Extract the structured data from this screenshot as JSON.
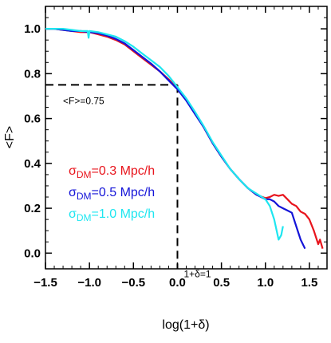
{
  "chart_data": {
    "type": "line",
    "xlabel": "log(1+δ)",
    "ylabel": "<F>",
    "xlim": [
      -1.5,
      1.7
    ],
    "ylim": [
      -0.07,
      1.1
    ],
    "x_ticks": [
      -1.5,
      -1.0,
      -0.5,
      0.0,
      0.5,
      1.0,
      1.5
    ],
    "x_tick_labels": [
      "−1.5",
      "−1.0",
      "−0.5",
      "0.0",
      "0.5",
      "1.0",
      "1.5"
    ],
    "y_ticks": [
      0.0,
      0.2,
      0.4,
      0.6,
      0.8,
      1.0
    ],
    "y_tick_labels": [
      "0.0",
      "0.2",
      "0.4",
      "0.6",
      "0.8",
      "1.0"
    ],
    "grid": false,
    "legend_placement": "center-left",
    "reference_lines": [
      {
        "kind": "horizontal",
        "y": 0.75,
        "x_from": -1.5,
        "x_to": 0.0,
        "style": "dashed",
        "label": "<F>=0.75"
      },
      {
        "kind": "vertical",
        "x": 0.0,
        "y_from": -0.07,
        "y_to": 0.75,
        "style": "dashed",
        "label": "1+δ=1"
      }
    ],
    "series": [
      {
        "name_prefix": "σ",
        "name_sub": "DM",
        "name_suffix": "=0.3 Mpc/h",
        "color": "#e8141c",
        "x": [
          -1.5,
          -1.4,
          -1.3,
          -1.2,
          -1.1,
          -1.0,
          -0.9,
          -0.8,
          -0.7,
          -0.6,
          -0.5,
          -0.4,
          -0.3,
          -0.2,
          -0.1,
          0.0,
          0.1,
          0.2,
          0.3,
          0.4,
          0.5,
          0.6,
          0.7,
          0.8,
          0.9,
          1.0,
          1.05,
          1.1,
          1.15,
          1.2,
          1.25,
          1.3,
          1.35,
          1.4,
          1.45,
          1.5,
          1.55,
          1.6,
          1.62,
          1.65
        ],
        "y": [
          1.0,
          1.0,
          0.995,
          0.99,
          0.985,
          0.985,
          0.975,
          0.965,
          0.95,
          0.93,
          0.9,
          0.87,
          0.84,
          0.81,
          0.775,
          0.735,
          0.685,
          0.625,
          0.56,
          0.49,
          0.43,
          0.375,
          0.33,
          0.29,
          0.26,
          0.245,
          0.25,
          0.26,
          0.255,
          0.26,
          0.24,
          0.22,
          0.21,
          0.185,
          0.175,
          0.15,
          0.1,
          0.04,
          0.06,
          0.02
        ]
      },
      {
        "name_prefix": "σ",
        "name_sub": "DM",
        "name_suffix": "=0.5 Mpc/h",
        "color": "#1414d8",
        "x": [
          -1.5,
          -1.4,
          -1.3,
          -1.2,
          -1.1,
          -1.0,
          -0.9,
          -0.8,
          -0.7,
          -0.6,
          -0.5,
          -0.4,
          -0.3,
          -0.2,
          -0.1,
          0.0,
          0.1,
          0.2,
          0.3,
          0.4,
          0.5,
          0.6,
          0.7,
          0.8,
          0.9,
          1.0,
          1.05,
          1.1,
          1.15,
          1.2,
          1.25,
          1.3,
          1.35,
          1.4,
          1.45
        ],
        "y": [
          1.0,
          1.0,
          0.995,
          0.99,
          0.99,
          0.985,
          0.98,
          0.97,
          0.955,
          0.935,
          0.905,
          0.875,
          0.845,
          0.81,
          0.77,
          0.73,
          0.68,
          0.62,
          0.56,
          0.49,
          0.43,
          0.375,
          0.33,
          0.29,
          0.26,
          0.24,
          0.24,
          0.23,
          0.21,
          0.2,
          0.19,
          0.18,
          0.12,
          0.06,
          0.02
        ]
      },
      {
        "name_prefix": "σ",
        "name_sub": "DM",
        "name_suffix": "=1.0 Mpc/h",
        "color": "#1ee6f0",
        "x": [
          -1.5,
          -1.4,
          -1.3,
          -1.2,
          -1.1,
          -1.02,
          -1.01,
          -1.0,
          -0.9,
          -0.8,
          -0.7,
          -0.6,
          -0.5,
          -0.4,
          -0.3,
          -0.2,
          -0.1,
          0.0,
          0.1,
          0.2,
          0.3,
          0.4,
          0.5,
          0.6,
          0.7,
          0.8,
          0.9,
          1.0,
          1.05,
          1.1,
          1.15,
          1.18,
          1.2
        ],
        "y": [
          1.0,
          1.0,
          1.0,
          0.995,
          0.99,
          0.99,
          0.96,
          0.99,
          0.985,
          0.975,
          0.965,
          0.945,
          0.92,
          0.89,
          0.86,
          0.83,
          0.79,
          0.74,
          0.69,
          0.63,
          0.565,
          0.495,
          0.435,
          0.375,
          0.33,
          0.29,
          0.265,
          0.24,
          0.21,
          0.15,
          0.06,
          0.08,
          0.12
        ]
      }
    ]
  }
}
